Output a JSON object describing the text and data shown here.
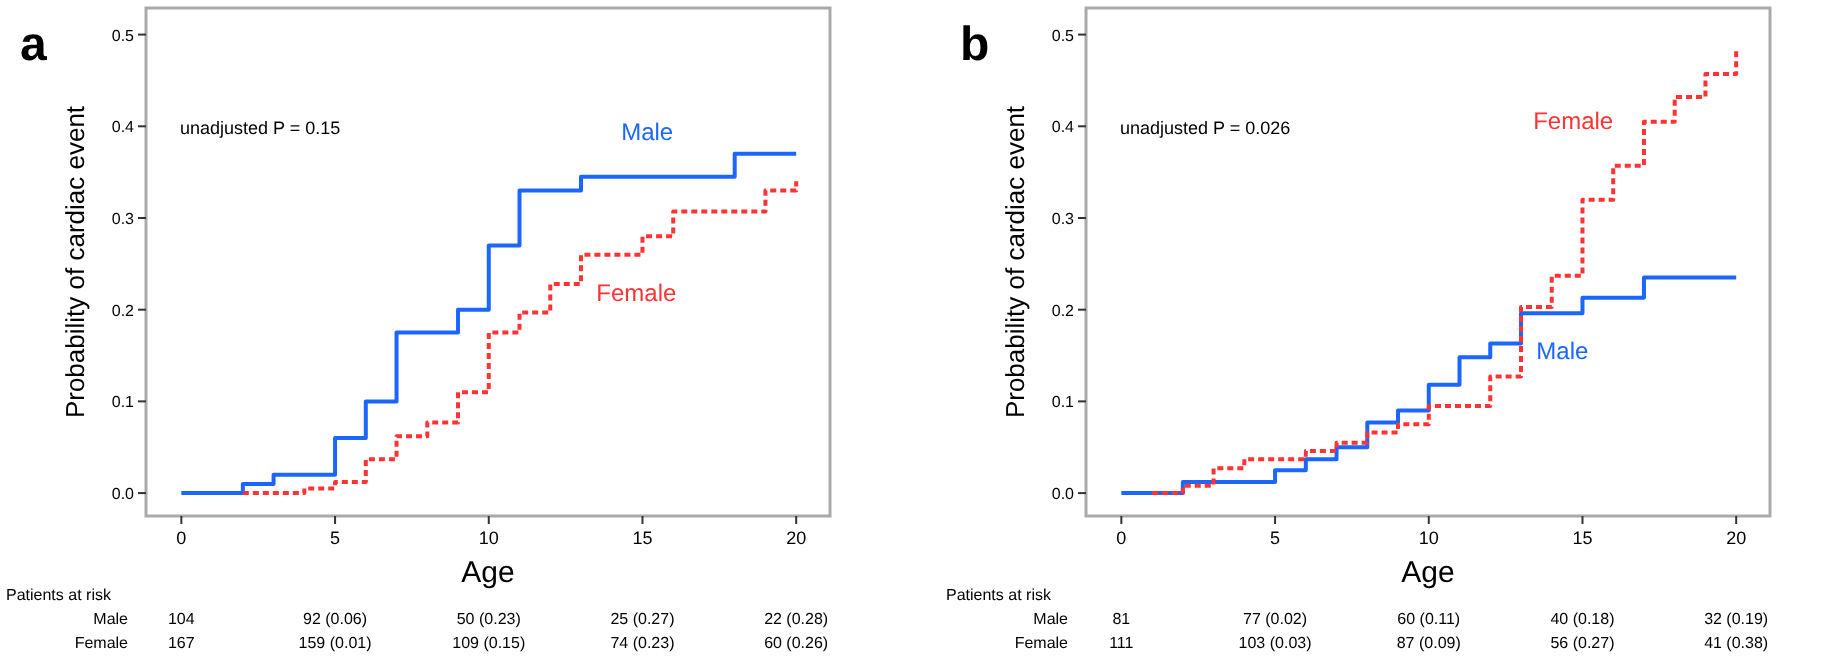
{
  "chart_data": [
    {
      "type": "step",
      "title": "a",
      "xlabel": "Age",
      "ylabel": "Probability of cardiac event",
      "xlim": [
        -1.15,
        21.1
      ],
      "ylim": [
        -0.025,
        0.529
      ],
      "xticks": [
        0,
        5,
        10,
        15,
        20
      ],
      "yticks": [
        {
          "value": 0,
          "label": "0.0"
        },
        0.1,
        0.2,
        0.3,
        0.4,
        0.5
      ],
      "grid": false,
      "series": [
        {
          "name": "Male",
          "color": "#1a66ff",
          "line_style": "solid",
          "x": [
            0,
            2,
            3,
            5,
            6,
            7,
            9,
            10,
            11,
            13,
            18,
            20
          ],
          "values": [
            0,
            0.01,
            0.02,
            0.06,
            0.1,
            0.175,
            0.2,
            0.27,
            0.33,
            0.345,
            0.37,
            0.37
          ]
        },
        {
          "name": "Female",
          "color": "#ff3333",
          "line_style": "dotted",
          "x": [
            2,
            4,
            5,
            6,
            7,
            8,
            9,
            10,
            11,
            12,
            13,
            15,
            16,
            19,
            20
          ],
          "values": [
            0,
            0.005,
            0.012,
            0.037,
            0.062,
            0.077,
            0.11,
            0.175,
            0.197,
            0.228,
            0.26,
            0.28,
            0.307,
            0.33,
            0.34
          ]
        }
      ],
      "annotations": [
        "unadjusted P = 0.15",
        "Patients at risk",
        "Male",
        "104",
        "92 (0.06)",
        "50 (0.23)",
        "25 (0.27)",
        "22 (0.28)",
        "Female",
        "167",
        "159 (0.01)",
        "109 (0.15)",
        "74 (0.23)",
        "60 (0.26)"
      ]
    },
    {
      "type": "step",
      "title": "b",
      "xlabel": "Age",
      "ylabel": "Probability of cardiac event",
      "xlim": [
        -1.15,
        21.1
      ],
      "ylim": [
        -0.025,
        0.529
      ],
      "xticks": [
        0,
        5,
        10,
        15,
        20
      ],
      "yticks": [
        {
          "value": 0,
          "label": "0.0"
        },
        0.1,
        0.2,
        0.3,
        0.4,
        0.5
      ],
      "grid": false,
      "series": [
        {
          "name": "Male",
          "color": "#1a66ff",
          "line_style": "solid",
          "x": [
            0,
            2,
            5,
            6,
            7,
            8,
            9,
            10,
            11,
            12,
            13,
            15,
            17,
            20
          ],
          "values": [
            0,
            0.012,
            0.025,
            0.037,
            0.05,
            0.077,
            0.09,
            0.118,
            0.148,
            0.163,
            0.196,
            0.213,
            0.235,
            0.235
          ]
        },
        {
          "name": "Female",
          "color": "#ff3333",
          "line_style": "dotted",
          "x": [
            1,
            2,
            3,
            4,
            6,
            7,
            8,
            9,
            10,
            12,
            13,
            14,
            15,
            16,
            17,
            18,
            19,
            20
          ],
          "values": [
            0,
            0.008,
            0.027,
            0.037,
            0.046,
            0.055,
            0.066,
            0.075,
            0.095,
            0.127,
            0.203,
            0.237,
            0.32,
            0.357,
            0.405,
            0.432,
            0.457,
            0.483
          ]
        }
      ],
      "annotations": [
        "unadjusted P = 0.026",
        "Patients at risk",
        "Male",
        "81",
        "77 (0.02)",
        "60 (0.11)",
        "40 (0.18)",
        "32 (0.19)",
        "Female",
        "111",
        "103 (0.03)",
        "87 (0.09)",
        "56 (0.27)",
        "41 (0.38)"
      ]
    }
  ]
}
